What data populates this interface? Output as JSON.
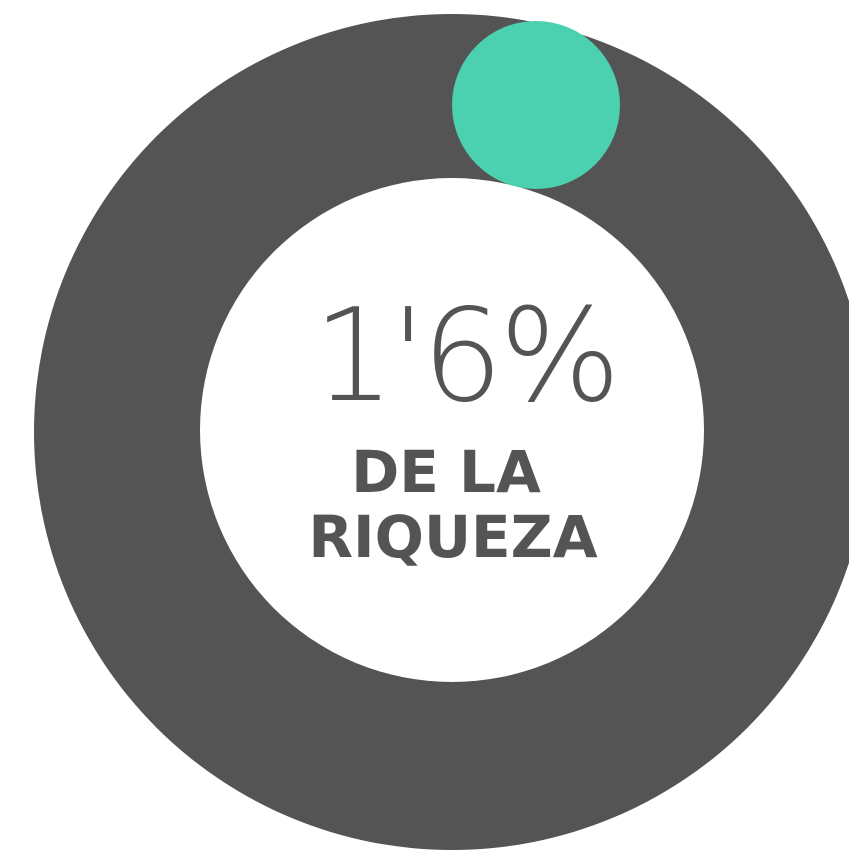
{
  "stat": {
    "value": "1'6%",
    "caption": [
      "DE LA",
      "RIQUEZA"
    ]
  }
}
